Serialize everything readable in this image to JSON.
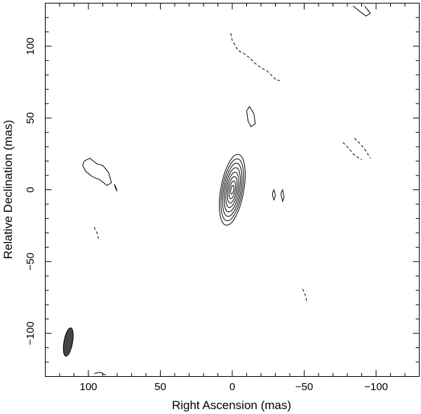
{
  "chart_data": {
    "type": "contour",
    "xlabel": "Right Ascension  (mas)",
    "ylabel": "Relative Declination  (mas)",
    "xlim": [
      130,
      -130
    ],
    "ylim": [
      -130,
      130
    ],
    "x_reversed": true,
    "x_ticks": [
      100,
      50,
      0,
      -50,
      -100
    ],
    "y_ticks": [
      100,
      50,
      0,
      -50,
      -100
    ],
    "x_tick_labels": [
      "100",
      "50",
      "0",
      "−50",
      "−100"
    ],
    "y_tick_labels": [
      "100",
      "50",
      "0",
      "−50",
      "−100"
    ],
    "grid": false,
    "legend": "none",
    "core": {
      "x": 0,
      "y": 0,
      "levels": 8,
      "semi_major_max": 25,
      "semi_minor_max": 8,
      "pa_deg": 10
    },
    "beam": {
      "x": 114,
      "y": -106,
      "semi_major": 10,
      "semi_minor": 3,
      "pa_deg": 10
    },
    "contours": [
      {
        "style": "solid",
        "points": [
          [
            103,
            20
          ],
          [
            99,
            22
          ],
          [
            94,
            18
          ],
          [
            90,
            17
          ],
          [
            86,
            12
          ],
          [
            84,
            5
          ],
          [
            87,
            3
          ],
          [
            92,
            7
          ],
          [
            97,
            9
          ],
          [
            102,
            13
          ],
          [
            104,
            17
          ],
          [
            103,
            20
          ]
        ]
      },
      {
        "style": "solid",
        "points": [
          [
            -10,
            55
          ],
          [
            -12,
            58
          ],
          [
            -15,
            53
          ],
          [
            -16,
            46
          ],
          [
            -13,
            44
          ],
          [
            -11,
            48
          ],
          [
            -10,
            55
          ]
        ]
      },
      {
        "style": "solid",
        "points": [
          [
            82,
            4
          ],
          [
            81,
            1
          ],
          [
            80,
            -1
          ],
          [
            81,
            2
          ],
          [
            82,
            4
          ]
        ]
      },
      {
        "style": "solid",
        "points": [
          [
            -28,
            -2
          ],
          [
            -29,
            0
          ],
          [
            -30,
            -4
          ],
          [
            -29,
            -7
          ],
          [
            -28,
            -4
          ],
          [
            -28,
            -2
          ]
        ]
      },
      {
        "style": "solid",
        "points": [
          [
            -34,
            -2
          ],
          [
            -35,
            0
          ],
          [
            -36,
            -5
          ],
          [
            -35,
            -8
          ],
          [
            -34,
            -4
          ],
          [
            -34,
            -2
          ]
        ]
      },
      {
        "style": "solid",
        "points": [
          [
            -84,
            128
          ],
          [
            -89,
            124
          ],
          [
            -93,
            121
          ],
          [
            -96,
            123
          ],
          [
            -92,
            128
          ]
        ]
      },
      {
        "style": "solid",
        "points": [
          [
            96,
            -128
          ],
          [
            92,
            -127
          ],
          [
            88,
            -129
          ]
        ]
      },
      {
        "style": "dashed",
        "points": [
          [
            1,
            109
          ],
          [
            0,
            104
          ],
          [
            -4,
            97
          ],
          [
            -8,
            95
          ],
          [
            -12,
            92
          ],
          [
            -16,
            88
          ],
          [
            -20,
            85
          ],
          [
            -24,
            83
          ],
          [
            -27,
            80
          ],
          [
            -30,
            77
          ],
          [
            -33,
            76
          ]
        ]
      },
      {
        "style": "dashed",
        "points": [
          [
            -77,
            33
          ],
          [
            -81,
            29
          ],
          [
            -84,
            25
          ],
          [
            -88,
            22
          ],
          [
            -90,
            21
          ]
        ]
      },
      {
        "style": "dashed",
        "points": [
          [
            -85,
            36
          ],
          [
            -89,
            32
          ],
          [
            -93,
            27
          ],
          [
            -96,
            22
          ]
        ]
      },
      {
        "style": "dashed",
        "points": [
          [
            96,
            -26
          ],
          [
            94,
            -30
          ],
          [
            93,
            -34
          ]
        ]
      },
      {
        "style": "dashed",
        "points": [
          [
            -49,
            -69
          ],
          [
            -51,
            -74
          ],
          [
            -52,
            -79
          ]
        ]
      }
    ]
  }
}
